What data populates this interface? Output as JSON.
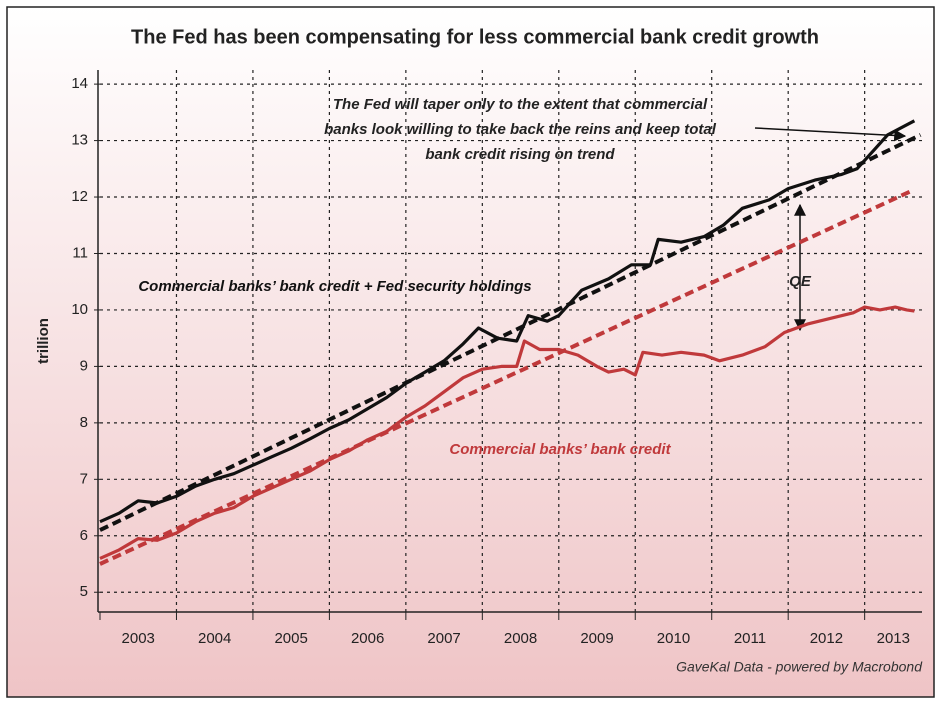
{
  "chart_data": {
    "type": "line",
    "title": "The Fed has been compensating for less commercial bank credit growth",
    "ylabel": "trillion",
    "source": "GaveKal Data - powered by Macrobond",
    "annotation": [
      "The Fed will taper only to the extent that commercial",
      "banks look willing to take back the reins and keep total",
      "bank credit rising on trend"
    ],
    "qe_label": "QE",
    "xlim": [
      2003.0,
      2013.75
    ],
    "ylim": [
      4.65,
      14.25
    ],
    "xticks": [
      {
        "value": 2003,
        "label": "2003"
      },
      {
        "value": 2004,
        "label": "2004"
      },
      {
        "value": 2005,
        "label": "2005"
      },
      {
        "value": 2006,
        "label": "2006"
      },
      {
        "value": 2007,
        "label": "2007"
      },
      {
        "value": 2008,
        "label": "2008"
      },
      {
        "value": 2009,
        "label": "2009"
      },
      {
        "value": 2010,
        "label": "2010"
      },
      {
        "value": 2011,
        "label": "2011"
      },
      {
        "value": 2012,
        "label": "2012"
      },
      {
        "value": 2013,
        "label": "2013"
      }
    ],
    "yticks": [
      5,
      6,
      7,
      8,
      9,
      10,
      11,
      12,
      13,
      14
    ],
    "grid": true,
    "series": [
      {
        "name": "Commercial banks’ bank credit + Fed security holdings",
        "color": "#111111",
        "x": [
          2003.0,
          2003.25,
          2003.5,
          2003.75,
          2004.0,
          2004.25,
          2004.5,
          2004.75,
          2005.0,
          2005.25,
          2005.5,
          2005.75,
          2006.0,
          2006.25,
          2006.5,
          2006.75,
          2007.0,
          2007.25,
          2007.5,
          2007.75,
          2007.95,
          2008.2,
          2008.45,
          2008.6,
          2008.85,
          2009.0,
          2009.3,
          2009.65,
          2009.95,
          2010.2,
          2010.3,
          2010.6,
          2010.9,
          2011.15,
          2011.4,
          2011.75,
          2012.0,
          2012.35,
          2012.7,
          2012.9,
          2013.1,
          2013.3,
          2013.65
        ],
        "values": [
          6.25,
          6.4,
          6.62,
          6.58,
          6.7,
          6.88,
          7.0,
          7.1,
          7.25,
          7.4,
          7.55,
          7.72,
          7.9,
          8.05,
          8.25,
          8.45,
          8.7,
          8.9,
          9.1,
          9.4,
          9.68,
          9.5,
          9.45,
          9.9,
          9.8,
          9.9,
          10.35,
          10.55,
          10.8,
          10.8,
          11.25,
          11.2,
          11.3,
          11.5,
          11.8,
          11.95,
          12.15,
          12.3,
          12.4,
          12.5,
          12.8,
          13.1,
          13.35
        ]
      },
      {
        "name": "Commercial banks’ bank credit",
        "color": "#c0393b",
        "x": [
          2003.0,
          2003.25,
          2003.5,
          2003.75,
          2004.0,
          2004.25,
          2004.5,
          2004.75,
          2005.0,
          2005.25,
          2005.5,
          2005.75,
          2006.0,
          2006.25,
          2006.5,
          2006.75,
          2007.0,
          2007.25,
          2007.5,
          2007.75,
          2008.0,
          2008.25,
          2008.45,
          2008.55,
          2008.75,
          2009.0,
          2009.25,
          2009.5,
          2009.65,
          2009.85,
          2010.0,
          2010.1,
          2010.35,
          2010.6,
          2010.9,
          2011.1,
          2011.4,
          2011.7,
          2011.95,
          2012.25,
          2012.55,
          2012.85,
          2013.0,
          2013.2,
          2013.4,
          2013.55,
          2013.65
        ],
        "values": [
          5.6,
          5.75,
          5.95,
          5.92,
          6.05,
          6.25,
          6.4,
          6.5,
          6.7,
          6.85,
          7.0,
          7.15,
          7.35,
          7.5,
          7.7,
          7.85,
          8.1,
          8.3,
          8.55,
          8.8,
          8.95,
          9.0,
          9.0,
          9.45,
          9.3,
          9.3,
          9.2,
          9.0,
          8.9,
          8.95,
          8.85,
          9.25,
          9.2,
          9.25,
          9.2,
          9.1,
          9.2,
          9.35,
          9.6,
          9.75,
          9.85,
          9.95,
          10.05,
          10.0,
          10.05,
          10.0,
          9.98
        ]
      },
      {
        "color": "#111111",
        "dashed": true,
        "x": [
          2003.0,
          2013.73
        ],
        "values": [
          6.1,
          13.1
        ]
      },
      {
        "color": "#c0393b",
        "dashed": true,
        "x": [
          2003.0,
          2013.6
        ],
        "values": [
          5.5,
          12.1
        ]
      }
    ]
  }
}
